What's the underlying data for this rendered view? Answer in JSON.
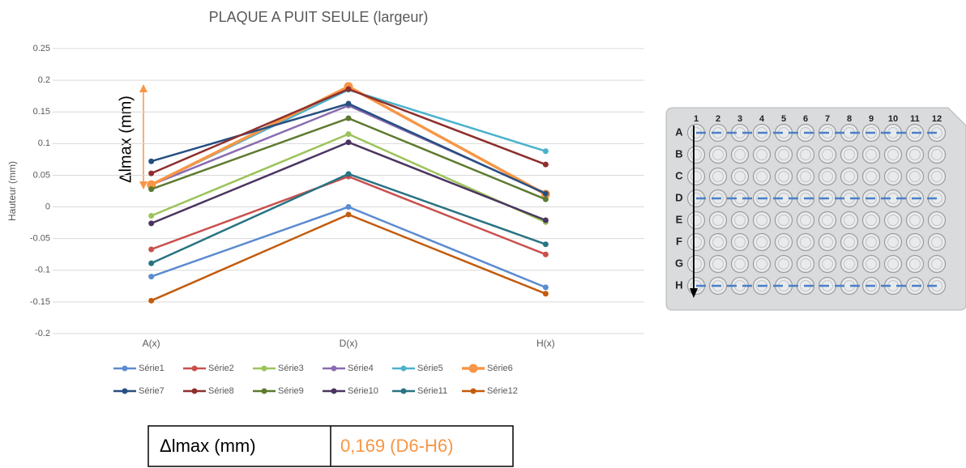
{
  "chart_data": {
    "type": "line",
    "title": "PLAQUE A PUIT SEULE (largeur)",
    "y_label": "Hauteur (mm)",
    "annotation": "Δlmax (mm)",
    "categories": [
      "A(x)",
      "D(x)",
      "H(x)"
    ],
    "series": [
      {
        "name": "Série1",
        "color": "#5b8bd0",
        "values": [
          -0.11,
          0.0,
          -0.127
        ]
      },
      {
        "name": "Série2",
        "color": "#c9504d",
        "values": [
          -0.067,
          0.048,
          -0.075
        ]
      },
      {
        "name": "Série3",
        "color": "#9bc35a",
        "values": [
          -0.014,
          0.115,
          -0.024
        ]
      },
      {
        "name": "Série4",
        "color": "#8a6bb0",
        "values": [
          0.035,
          0.16,
          0.022
        ]
      },
      {
        "name": "Série5",
        "color": "#4bb2cc",
        "values": [
          0.035,
          0.185,
          0.088
        ]
      },
      {
        "name": "Série6",
        "color": "#f79646",
        "values": [
          0.035,
          0.19,
          0.02
        ]
      },
      {
        "name": "Série7",
        "color": "#264f82",
        "values": [
          0.072,
          0.163,
          0.021
        ]
      },
      {
        "name": "Série8",
        "color": "#8e2f2d",
        "values": [
          0.053,
          0.186,
          0.067
        ]
      },
      {
        "name": "Série9",
        "color": "#5d7a2e",
        "values": [
          0.028,
          0.14,
          0.012
        ]
      },
      {
        "name": "Série10",
        "color": "#4a3560",
        "values": [
          -0.026,
          0.102,
          -0.021
        ]
      },
      {
        "name": "Série11",
        "color": "#287383",
        "values": [
          -0.089,
          0.052,
          -0.059
        ]
      },
      {
        "name": "Série12",
        "color": "#c35b0d",
        "values": [
          -0.148,
          -0.012,
          -0.137
        ]
      }
    ],
    "ylim": [
      -0.2,
      0.25
    ],
    "yticks": [
      -0.2,
      -0.15,
      -0.1,
      -0.05,
      0,
      0.05,
      0.1,
      0.15,
      0.2,
      0.25
    ],
    "grid": true,
    "legend": "bottom"
  },
  "table": {
    "rows": [
      [
        "Δlmax (mm)",
        "0,169 (D6-H6)"
      ]
    ]
  },
  "plate": {
    "rows": [
      "A",
      "B",
      "C",
      "D",
      "E",
      "F",
      "G",
      "H"
    ],
    "columns": [
      "1",
      "2",
      "3",
      "4",
      "5",
      "6",
      "7",
      "8",
      "9",
      "10",
      "11",
      "12"
    ]
  }
}
